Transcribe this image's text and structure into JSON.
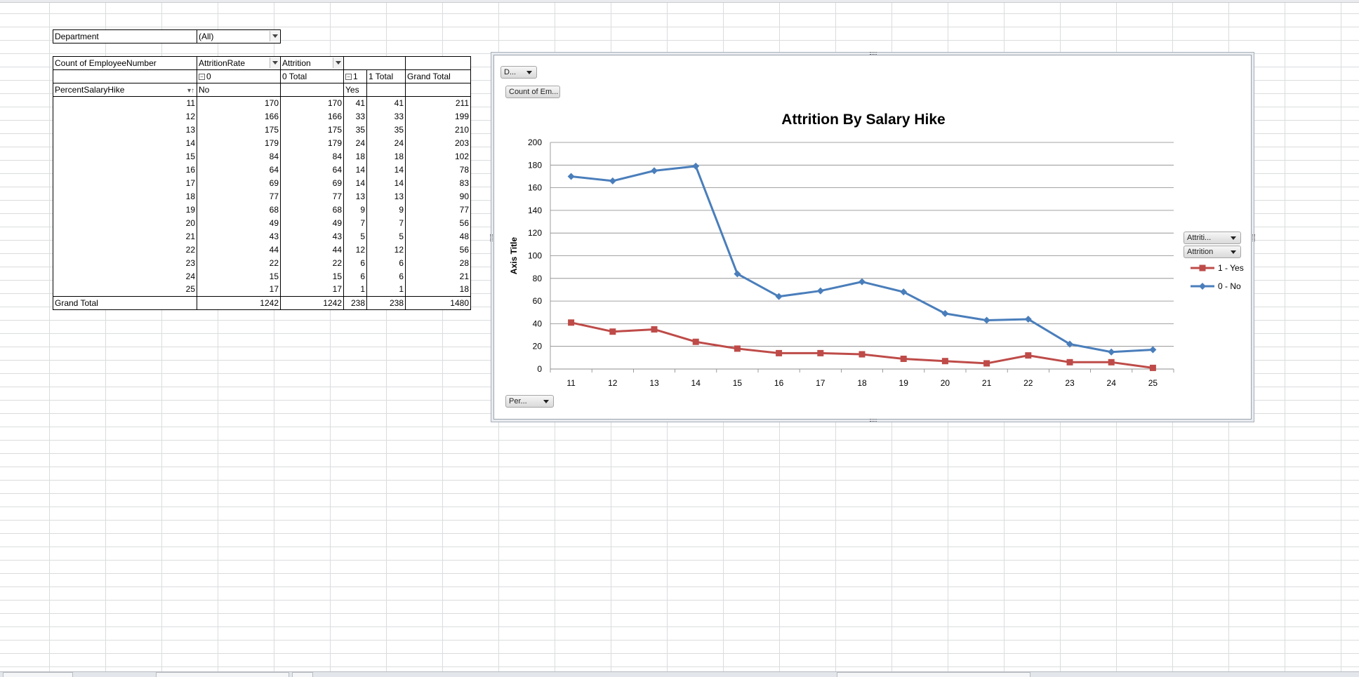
{
  "pivot": {
    "filter": {
      "label": "Department",
      "value": "(All)"
    },
    "header1": {
      "values_label": "Count of EmployeeNumber",
      "col_field1": "AttritionRate",
      "col_field2": "Attrition"
    },
    "header2": {
      "group0": "0",
      "group0_total": "0 Total",
      "group1": "1",
      "group1_total": "1 Total",
      "grand_total": "Grand Total"
    },
    "header3": {
      "row_field": "PercentSalaryHike",
      "sub0": "No",
      "sub1": "Yes"
    },
    "rows": [
      {
        "label": "11",
        "no": "170",
        "no_total": "170",
        "yes": "41",
        "yes_total": "41",
        "grand": "211"
      },
      {
        "label": "12",
        "no": "166",
        "no_total": "166",
        "yes": "33",
        "yes_total": "33",
        "grand": "199"
      },
      {
        "label": "13",
        "no": "175",
        "no_total": "175",
        "yes": "35",
        "yes_total": "35",
        "grand": "210"
      },
      {
        "label": "14",
        "no": "179",
        "no_total": "179",
        "yes": "24",
        "yes_total": "24",
        "grand": "203"
      },
      {
        "label": "15",
        "no": "84",
        "no_total": "84",
        "yes": "18",
        "yes_total": "18",
        "grand": "102"
      },
      {
        "label": "16",
        "no": "64",
        "no_total": "64",
        "yes": "14",
        "yes_total": "14",
        "grand": "78"
      },
      {
        "label": "17",
        "no": "69",
        "no_total": "69",
        "yes": "14",
        "yes_total": "14",
        "grand": "83"
      },
      {
        "label": "18",
        "no": "77",
        "no_total": "77",
        "yes": "13",
        "yes_total": "13",
        "grand": "90"
      },
      {
        "label": "19",
        "no": "68",
        "no_total": "68",
        "yes": "9",
        "yes_total": "9",
        "grand": "77"
      },
      {
        "label": "20",
        "no": "49",
        "no_total": "49",
        "yes": "7",
        "yes_total": "7",
        "grand": "56"
      },
      {
        "label": "21",
        "no": "43",
        "no_total": "43",
        "yes": "5",
        "yes_total": "5",
        "grand": "48"
      },
      {
        "label": "22",
        "no": "44",
        "no_total": "44",
        "yes": "12",
        "yes_total": "12",
        "grand": "56"
      },
      {
        "label": "23",
        "no": "22",
        "no_total": "22",
        "yes": "6",
        "yes_total": "6",
        "grand": "28"
      },
      {
        "label": "24",
        "no": "15",
        "no_total": "15",
        "yes": "6",
        "yes_total": "6",
        "grand": "21"
      },
      {
        "label": "25",
        "no": "17",
        "no_total": "17",
        "yes": "1",
        "yes_total": "1",
        "grand": "18"
      }
    ],
    "grand_total_row": {
      "label": "Grand Total",
      "no": "1242",
      "no_total": "1242",
      "yes": "238",
      "yes_total": "238",
      "grand": "1480"
    }
  },
  "chart_buttons": {
    "report_filter": "D...",
    "values": "Count of Em...",
    "axis_field": "Per...",
    "legend_field1": "Attriti...",
    "legend_field2": "Attrition"
  },
  "colors": {
    "no_series": "#4a7ebb",
    "yes_series": "#be4b48",
    "gridline": "#868686"
  },
  "chart_data": {
    "type": "line",
    "title": "Attrition By Salary Hike",
    "xlabel": "",
    "ylabel": "Axis Title",
    "ylim": [
      0,
      200
    ],
    "yticks": [
      "0",
      "20",
      "40",
      "60",
      "80",
      "100",
      "120",
      "140",
      "160",
      "180",
      "200"
    ],
    "categories": [
      "11",
      "12",
      "13",
      "14",
      "15",
      "16",
      "17",
      "18",
      "19",
      "20",
      "21",
      "22",
      "23",
      "24",
      "25"
    ],
    "grid": true,
    "legend": "right",
    "series": [
      {
        "name": "1 - Yes",
        "marker": "square",
        "values": [
          41,
          33,
          35,
          24,
          18,
          14,
          14,
          13,
          9,
          7,
          5,
          12,
          6,
          6,
          1
        ]
      },
      {
        "name": "0 - No",
        "marker": "diamond",
        "values": [
          170,
          166,
          175,
          179,
          84,
          64,
          69,
          77,
          68,
          49,
          43,
          44,
          22,
          15,
          17
        ]
      }
    ]
  }
}
